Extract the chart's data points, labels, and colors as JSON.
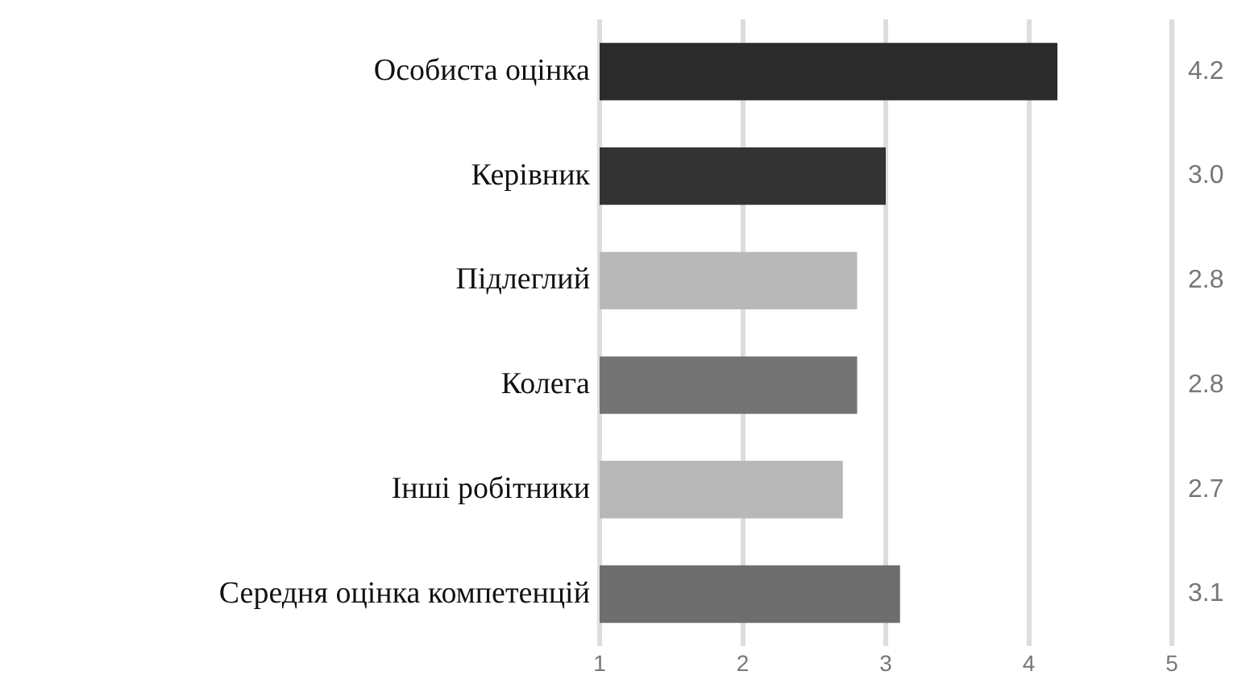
{
  "chart_data": {
    "type": "bar",
    "orientation": "horizontal",
    "categories": [
      "Особиста оцінка",
      "Керівник",
      "Підлеглий",
      "Колега",
      "Інші робітники",
      "Середня оцінка компетенцій"
    ],
    "values": [
      4.2,
      3.0,
      2.8,
      2.8,
      2.7,
      3.1
    ],
    "colors": [
      "#2b2b2b",
      "#333333",
      "#b8b8b8",
      "#737373",
      "#b8b8b8",
      "#6e6e6e"
    ],
    "value_labels": [
      "4.2",
      "3.0",
      "2.8",
      "2.8",
      "2.7",
      "3.1"
    ],
    "xlim": [
      1,
      5
    ],
    "xticks": [
      1,
      2,
      3,
      4,
      5
    ],
    "grid": "x",
    "legend": false
  }
}
